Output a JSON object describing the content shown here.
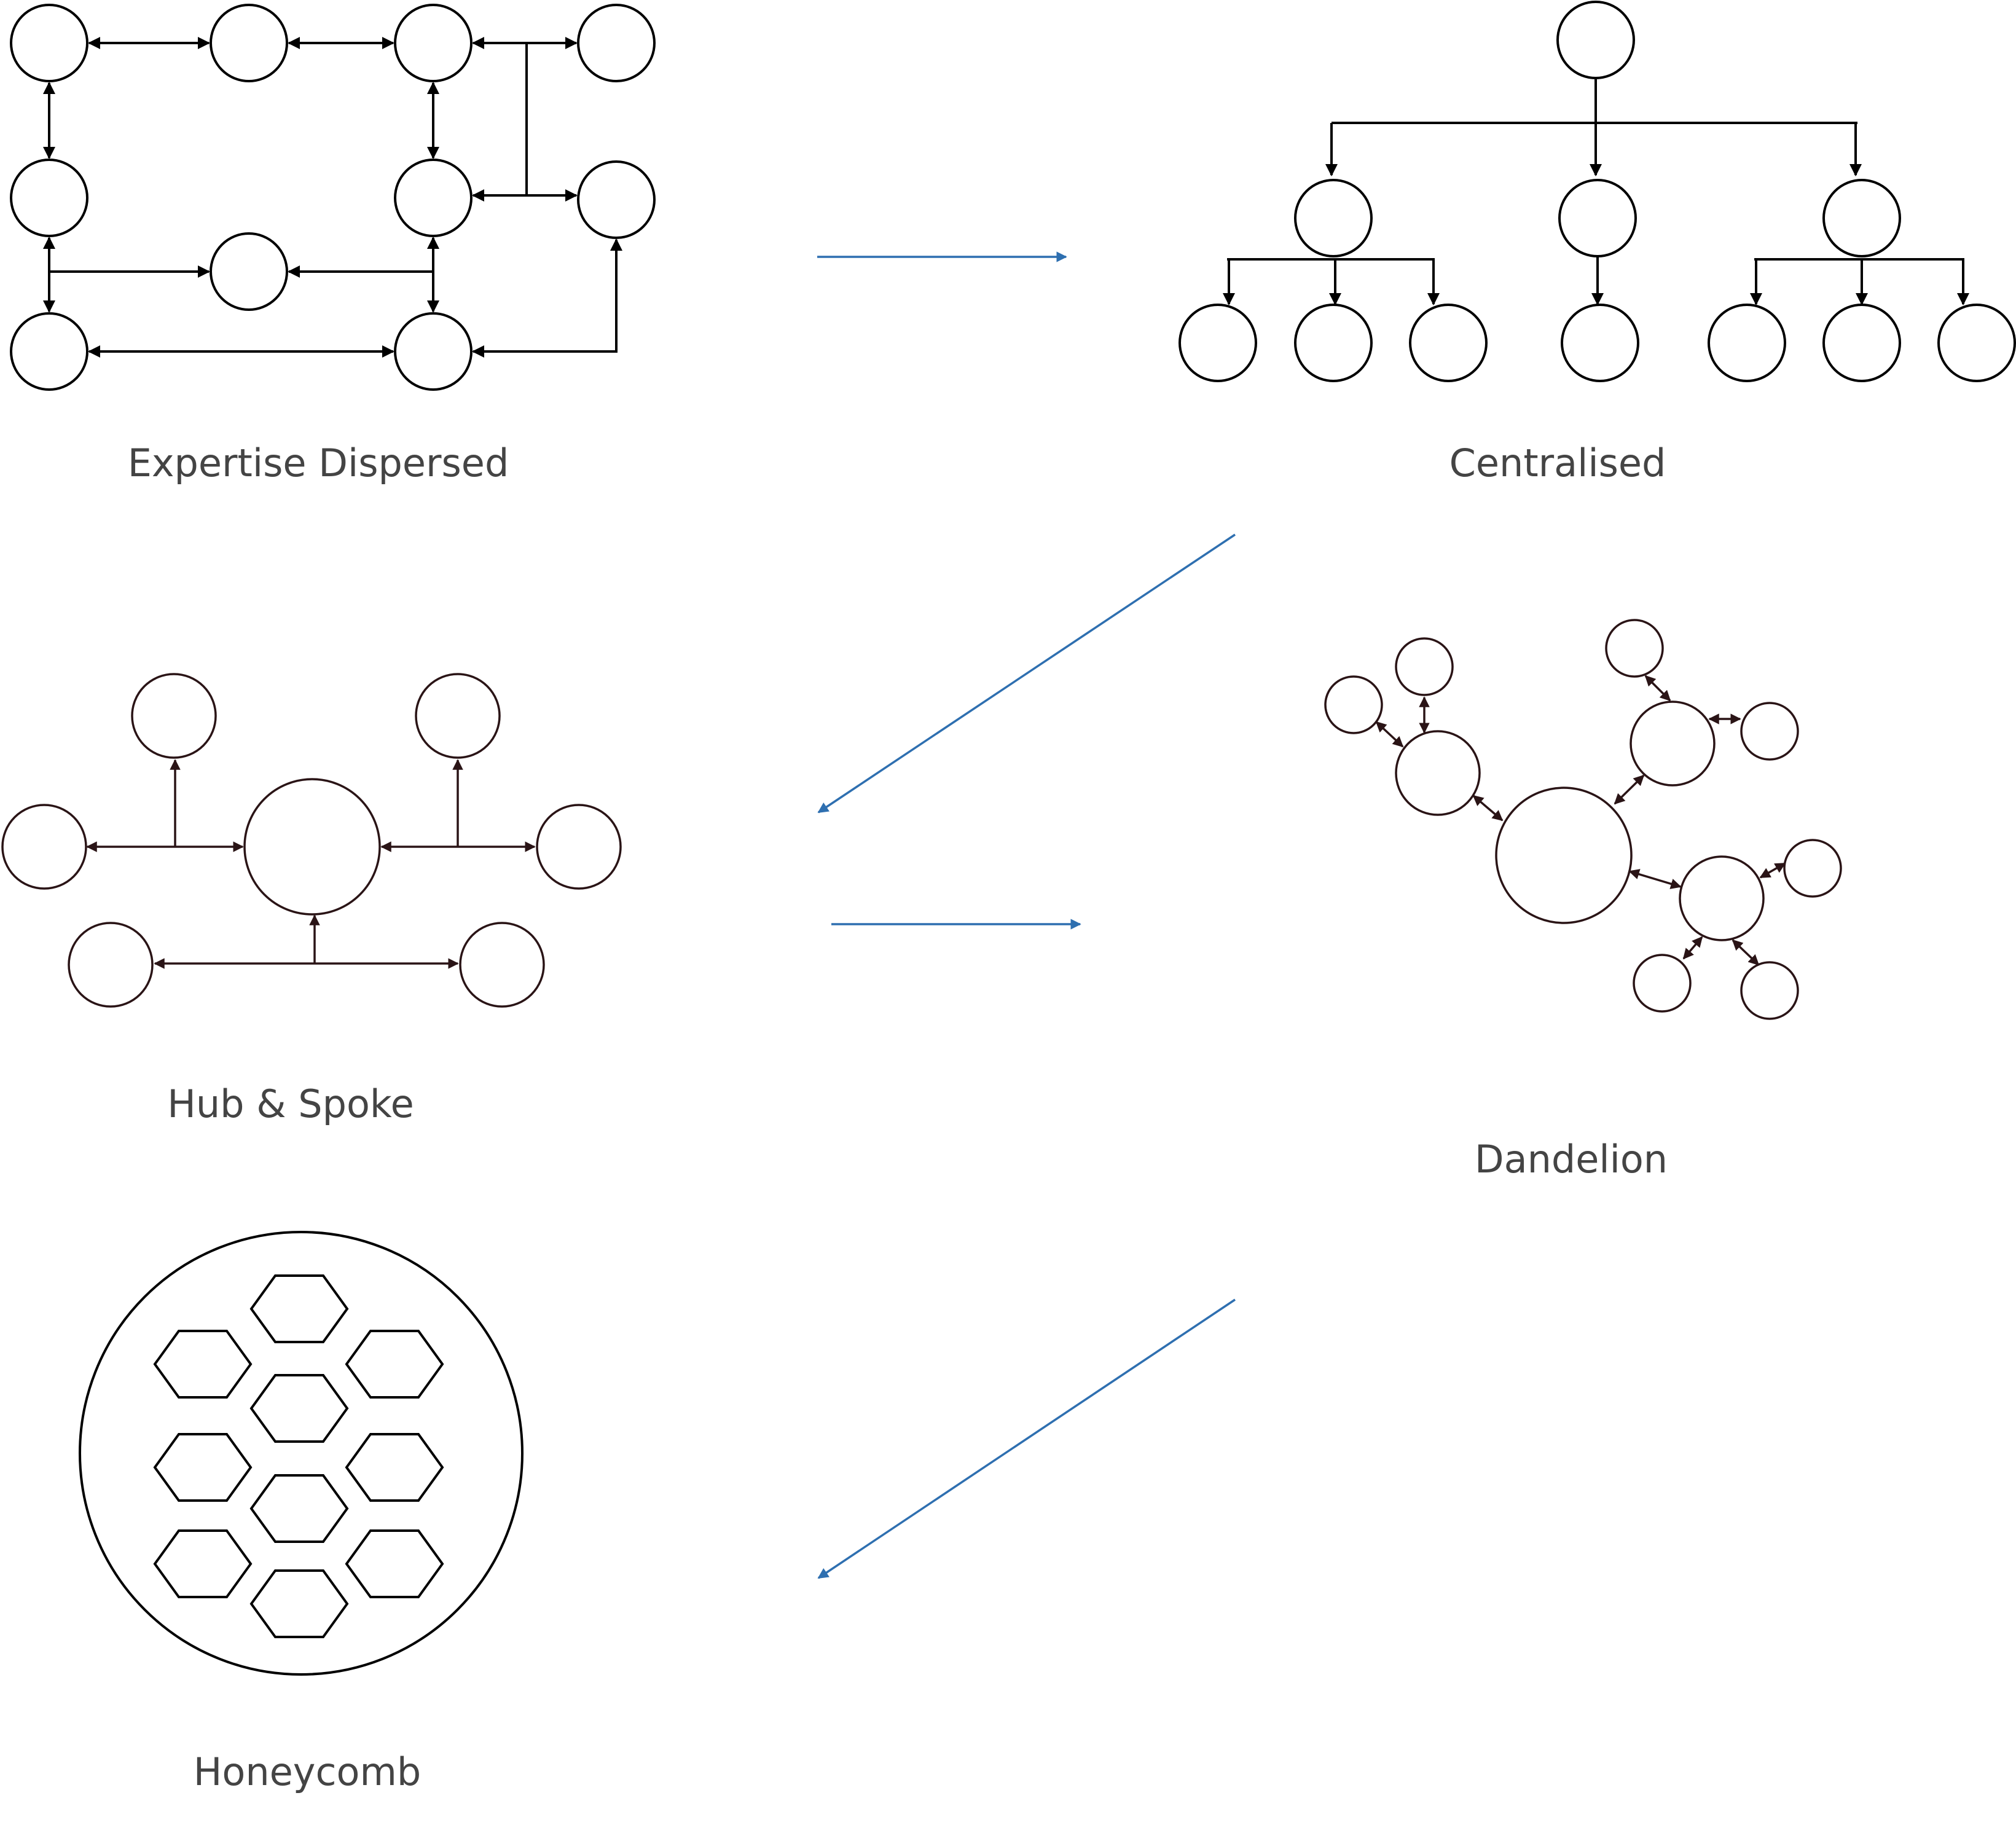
{
  "diagram": {
    "colors": {
      "node_stroke": "#000000",
      "hub_stroke": "#2a1416",
      "transition_arrow": "#2e6fb0",
      "label_text": "#444444",
      "background": "#ffffff"
    },
    "panels": [
      {
        "id": "expertise-dispersed",
        "label": "Expertise Dispersed"
      },
      {
        "id": "centralised",
        "label": "Centralised"
      },
      {
        "id": "hub-and-spoke",
        "label": "Hub & Spoke"
      },
      {
        "id": "dandelion",
        "label": "Dandelion"
      },
      {
        "id": "honeycomb",
        "label": "Honeycomb"
      }
    ],
    "transitions": [
      {
        "from": "expertise-dispersed",
        "to": "centralised"
      },
      {
        "from": "centralised",
        "to": "hub-and-spoke"
      },
      {
        "from": "hub-and-spoke",
        "to": "dandelion"
      },
      {
        "from": "dandelion",
        "to": "honeycomb"
      }
    ]
  }
}
